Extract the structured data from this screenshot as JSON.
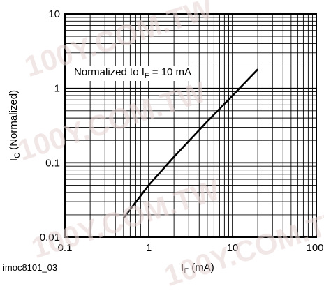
{
  "watermark_text": "100Y.COM.TW",
  "figure_id": "imoc8101_03",
  "chart_data": {
    "type": "line",
    "title": "",
    "xlabel": {
      "main": "I",
      "sub": "F",
      "unit": " (mA)"
    },
    "ylabel": {
      "main": "I",
      "sub": "C",
      "unit": " (Normalized)"
    },
    "x_scale": "log",
    "y_scale": "log",
    "xlim": [
      0.1,
      100
    ],
    "ylim": [
      0.01,
      10
    ],
    "x_ticks": [
      0.1,
      1,
      10,
      100
    ],
    "x_tick_labels": [
      "0.1",
      "1",
      "10",
      "100"
    ],
    "y_ticks": [
      0.01,
      0.1,
      1,
      10
    ],
    "y_tick_labels": [
      "0.01",
      "0.1",
      "1",
      "10"
    ],
    "grid": true,
    "annotation": {
      "prefix": "Normalized to I",
      "sub": "F",
      "suffix": " = 10 mA"
    },
    "series": [
      {
        "line_color": "#000000",
        "x": [
          0.5,
          1,
          2,
          5,
          10,
          20
        ],
        "y": [
          0.018,
          0.05,
          0.12,
          0.36,
          0.8,
          1.8
        ]
      }
    ]
  }
}
